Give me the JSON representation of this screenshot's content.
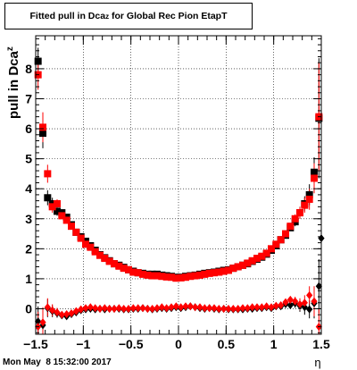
{
  "chart_data": {
    "type": "scatter",
    "title": {
      "main": "Fitted pull in Dca",
      "sub": "z",
      "rest": " for Global Rec Pion EtapT"
    },
    "ylabel": {
      "main": "pull in Dca",
      "sub": "z"
    },
    "xlabel": "η",
    "xlim": [
      -1.5,
      1.5
    ],
    "ylim": [
      -0.85,
      9.1
    ],
    "grid": true,
    "x_ticks": [
      {
        "v": -1.5,
        "label": "−1.5"
      },
      {
        "v": -1,
        "label": "−1"
      },
      {
        "v": -0.5,
        "label": "−0.5"
      },
      {
        "v": 0,
        "label": "0"
      },
      {
        "v": 0.5,
        "label": "0.5"
      },
      {
        "v": 1,
        "label": "1"
      },
      {
        "v": 1.5,
        "label": "1.5"
      }
    ],
    "y_ticks": [
      {
        "v": 0,
        "label": "0"
      },
      {
        "v": 1,
        "label": "1"
      },
      {
        "v": 2,
        "label": "2"
      },
      {
        "v": 3,
        "label": "3"
      },
      {
        "v": 4,
        "label": "4"
      },
      {
        "v": 5,
        "label": "5"
      },
      {
        "v": 6,
        "label": "6"
      },
      {
        "v": 7,
        "label": "7"
      },
      {
        "v": 8,
        "label": "8"
      }
    ],
    "series": [
      {
        "marker": "square",
        "color": "#000000",
        "x": [
          -1.475,
          -1.425,
          -1.375,
          -1.325,
          -1.275,
          -1.225,
          -1.175,
          -1.125,
          -1.075,
          -1.025,
          -0.975,
          -0.925,
          -0.875,
          -0.825,
          -0.775,
          -0.725,
          -0.675,
          -0.625,
          -0.575,
          -0.525,
          -0.475,
          -0.425,
          -0.375,
          -0.325,
          -0.275,
          -0.225,
          -0.175,
          -0.125,
          -0.075,
          -0.025,
          0.025,
          0.075,
          0.125,
          0.175,
          0.225,
          0.275,
          0.325,
          0.375,
          0.425,
          0.475,
          0.525,
          0.575,
          0.625,
          0.675,
          0.725,
          0.775,
          0.825,
          0.875,
          0.925,
          0.975,
          1.025,
          1.075,
          1.125,
          1.175,
          1.225,
          1.275,
          1.325,
          1.375,
          1.425,
          1.475
        ],
        "y": [
          8.25,
          5.85,
          3.7,
          3.5,
          3.25,
          3.2,
          3.05,
          2.8,
          2.55,
          2.4,
          2.25,
          2.1,
          1.95,
          1.8,
          1.7,
          1.6,
          1.5,
          1.45,
          1.38,
          1.3,
          1.25,
          1.2,
          1.18,
          1.15,
          1.15,
          1.15,
          1.12,
          1.1,
          1.08,
          1.05,
          1.05,
          1.08,
          1.1,
          1.12,
          1.15,
          1.18,
          1.2,
          1.22,
          1.25,
          1.28,
          1.3,
          1.35,
          1.4,
          1.45,
          1.5,
          1.58,
          1.65,
          1.72,
          1.82,
          1.95,
          2.1,
          2.3,
          2.45,
          2.7,
          2.9,
          3.2,
          3.5,
          3.8,
          4.55,
          6.35
        ],
        "err": [
          0.45,
          0.5,
          0.25,
          0.2,
          0.15,
          0.1,
          0.1,
          0.08,
          0.08,
          0.06,
          0.06,
          0.05,
          0.05,
          0.05,
          0.05,
          0.04,
          0.04,
          0.04,
          0.04,
          0.04,
          0.04,
          0.04,
          0.04,
          0.04,
          0.04,
          0.04,
          0.04,
          0.04,
          0.04,
          0.04,
          0.04,
          0.04,
          0.04,
          0.04,
          0.04,
          0.04,
          0.04,
          0.04,
          0.04,
          0.04,
          0.04,
          0.04,
          0.04,
          0.04,
          0.05,
          0.05,
          0.05,
          0.06,
          0.06,
          0.06,
          0.08,
          0.08,
          0.1,
          0.1,
          0.15,
          0.2,
          0.25,
          0.35,
          0.5,
          2.0
        ]
      },
      {
        "marker": "square",
        "color": "#ff0000",
        "x": [
          -1.475,
          -1.425,
          -1.375,
          -1.325,
          -1.275,
          -1.225,
          -1.175,
          -1.125,
          -1.075,
          -1.025,
          -0.975,
          -0.925,
          -0.875,
          -0.825,
          -0.775,
          -0.725,
          -0.675,
          -0.625,
          -0.575,
          -0.525,
          -0.475,
          -0.425,
          -0.375,
          -0.325,
          -0.275,
          -0.225,
          -0.175,
          -0.125,
          -0.075,
          -0.025,
          0.025,
          0.075,
          0.125,
          0.175,
          0.225,
          0.275,
          0.325,
          0.375,
          0.425,
          0.475,
          0.525,
          0.575,
          0.625,
          0.675,
          0.725,
          0.775,
          0.825,
          0.875,
          0.925,
          0.975,
          1.025,
          1.075,
          1.125,
          1.175,
          1.225,
          1.275,
          1.325,
          1.375,
          1.425,
          1.475
        ],
        "y": [
          7.8,
          6.05,
          4.5,
          3.4,
          3.5,
          3.1,
          2.95,
          2.75,
          2.55,
          2.35,
          2.15,
          2.05,
          1.9,
          1.78,
          1.68,
          1.58,
          1.5,
          1.42,
          1.35,
          1.3,
          1.22,
          1.2,
          1.15,
          1.12,
          1.1,
          1.1,
          1.08,
          1.06,
          1.05,
          1.02,
          1.03,
          1.05,
          1.08,
          1.1,
          1.12,
          1.15,
          1.18,
          1.2,
          1.22,
          1.25,
          1.28,
          1.35,
          1.4,
          1.45,
          1.52,
          1.6,
          1.68,
          1.75,
          1.85,
          2.0,
          2.15,
          2.3,
          2.5,
          2.75,
          3.0,
          3.2,
          3.45,
          3.65,
          4.35,
          6.4
        ],
        "err": [
          0.5,
          0.5,
          0.3,
          0.2,
          0.15,
          0.1,
          0.1,
          0.08,
          0.08,
          0.06,
          0.06,
          0.05,
          0.05,
          0.05,
          0.05,
          0.04,
          0.04,
          0.04,
          0.04,
          0.04,
          0.04,
          0.04,
          0.04,
          0.04,
          0.04,
          0.04,
          0.04,
          0.04,
          0.04,
          0.04,
          0.04,
          0.04,
          0.04,
          0.04,
          0.04,
          0.04,
          0.04,
          0.04,
          0.04,
          0.04,
          0.04,
          0.04,
          0.04,
          0.04,
          0.05,
          0.05,
          0.05,
          0.06,
          0.06,
          0.06,
          0.08,
          0.08,
          0.1,
          0.1,
          0.15,
          0.2,
          0.25,
          0.35,
          0.5,
          1.8
        ]
      },
      {
        "marker": "diamond",
        "color": "#000000",
        "x": [
          -1.475,
          -1.425,
          -1.375,
          -1.325,
          -1.275,
          -1.225,
          -1.175,
          -1.125,
          -1.075,
          -1.025,
          -0.975,
          -0.925,
          -0.875,
          -0.825,
          -0.775,
          -0.725,
          -0.675,
          -0.625,
          -0.575,
          -0.525,
          -0.475,
          -0.425,
          -0.375,
          -0.325,
          -0.275,
          -0.225,
          -0.175,
          -0.125,
          -0.075,
          -0.025,
          0.025,
          0.075,
          0.125,
          0.175,
          0.225,
          0.275,
          0.325,
          0.375,
          0.425,
          0.475,
          0.525,
          0.575,
          0.625,
          0.675,
          0.725,
          0.775,
          0.825,
          0.875,
          0.925,
          0.975,
          1.025,
          1.075,
          1.125,
          1.175,
          1.225,
          1.275,
          1.325,
          1.375,
          1.425,
          1.475,
          1.5
        ],
        "y": [
          -0.42,
          -0.55,
          0.02,
          -0.08,
          -0.15,
          -0.22,
          -0.25,
          -0.18,
          -0.12,
          -0.05,
          -0.02,
          0.0,
          -0.02,
          0.0,
          -0.02,
          0.0,
          0.0,
          0.0,
          -0.02,
          -0.02,
          0.0,
          0.0,
          0.02,
          0.0,
          -0.02,
          0.0,
          0.02,
          0.0,
          0.02,
          0.05,
          0.02,
          0.05,
          0.08,
          0.05,
          0.02,
          0.0,
          0.02,
          0.0,
          -0.02,
          0.0,
          -0.02,
          -0.02,
          -0.02,
          -0.02,
          0.0,
          0.0,
          0.02,
          0.02,
          0.05,
          0.02,
          0.08,
          0.08,
          0.15,
          0.12,
          0.18,
          0.1,
          0.05,
          -0.02,
          0.18,
          0.75,
          2.35
        ],
        "err": [
          0.5,
          0.5,
          0.3,
          0.2,
          0.15,
          0.1,
          0.08,
          0.06,
          0.06,
          0.05,
          0.05,
          0.04,
          0.04,
          0.04,
          0.04,
          0.04,
          0.04,
          0.04,
          0.04,
          0.04,
          0.04,
          0.04,
          0.04,
          0.04,
          0.04,
          0.04,
          0.04,
          0.04,
          0.04,
          0.04,
          0.04,
          0.04,
          0.04,
          0.04,
          0.04,
          0.04,
          0.04,
          0.04,
          0.04,
          0.04,
          0.04,
          0.04,
          0.04,
          0.04,
          0.04,
          0.04,
          0.04,
          0.05,
          0.05,
          0.06,
          0.06,
          0.08,
          0.1,
          0.1,
          0.15,
          0.2,
          0.25,
          0.3,
          0.5,
          0.9,
          1.6
        ]
      },
      {
        "marker": "diamond",
        "color": "#ff0000",
        "x": [
          -1.475,
          -1.425,
          -1.375,
          -1.325,
          -1.275,
          -1.225,
          -1.175,
          -1.125,
          -1.075,
          -1.025,
          -0.975,
          -0.925,
          -0.875,
          -0.825,
          -0.775,
          -0.725,
          -0.675,
          -0.625,
          -0.575,
          -0.525,
          -0.475,
          -0.425,
          -0.375,
          -0.325,
          -0.275,
          -0.225,
          -0.175,
          -0.125,
          -0.075,
          -0.025,
          0.025,
          0.075,
          0.125,
          0.175,
          0.225,
          0.275,
          0.325,
          0.375,
          0.425,
          0.475,
          0.525,
          0.575,
          0.625,
          0.675,
          0.725,
          0.775,
          0.825,
          0.875,
          0.925,
          0.975,
          1.025,
          1.075,
          1.125,
          1.175,
          1.225,
          1.275,
          1.325,
          1.375,
          1.425,
          1.475
        ],
        "y": [
          -0.6,
          -0.45,
          0.05,
          -0.05,
          -0.12,
          -0.2,
          -0.18,
          -0.15,
          -0.08,
          -0.02,
          0.02,
          0.05,
          0.02,
          0.0,
          0.02,
          0.0,
          0.0,
          0.02,
          0.0,
          0.0,
          0.02,
          0.02,
          0.02,
          0.0,
          0.0,
          0.02,
          0.05,
          0.02,
          0.05,
          0.08,
          0.05,
          0.08,
          0.08,
          0.05,
          0.05,
          0.02,
          0.02,
          0.02,
          0.0,
          0.0,
          0.0,
          0.0,
          0.0,
          0.02,
          0.02,
          0.05,
          0.05,
          0.05,
          0.08,
          0.05,
          0.1,
          0.12,
          0.22,
          0.3,
          0.25,
          0.15,
          0.2,
          0.45,
          0.25,
          -0.6
        ],
        "err": [
          0.5,
          0.5,
          0.3,
          0.2,
          0.15,
          0.1,
          0.08,
          0.06,
          0.06,
          0.05,
          0.05,
          0.04,
          0.04,
          0.04,
          0.04,
          0.04,
          0.04,
          0.04,
          0.04,
          0.04,
          0.04,
          0.04,
          0.04,
          0.04,
          0.04,
          0.04,
          0.04,
          0.04,
          0.04,
          0.04,
          0.04,
          0.04,
          0.04,
          0.04,
          0.04,
          0.04,
          0.04,
          0.04,
          0.04,
          0.04,
          0.04,
          0.04,
          0.04,
          0.04,
          0.04,
          0.04,
          0.04,
          0.05,
          0.05,
          0.06,
          0.06,
          0.08,
          0.1,
          0.1,
          0.15,
          0.2,
          0.25,
          0.3,
          0.5,
          0.6
        ]
      }
    ]
  },
  "footer": {
    "datestamp": "Mon May  8 15:32:00 2017"
  }
}
